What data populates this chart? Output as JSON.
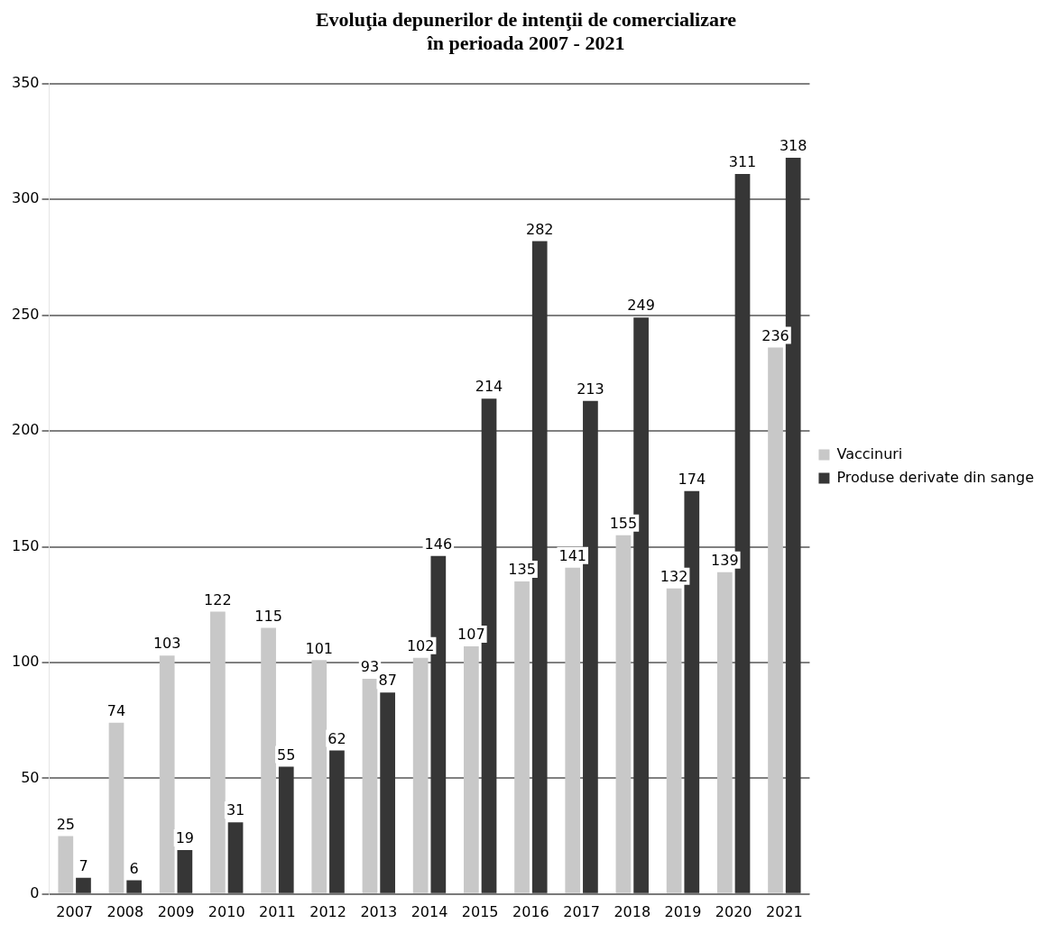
{
  "chart_data": {
    "type": "bar",
    "title": "Evoluţia depunerilor de intenţii de comercializare\nîn perioada 2007 - 2021",
    "categories": [
      "2007",
      "2008",
      "2009",
      "2010",
      "2011",
      "2012",
      "2013",
      "2014",
      "2015",
      "2016",
      "2017",
      "2018",
      "2019",
      "2020",
      "2021"
    ],
    "series": [
      {
        "name": "Vaccinuri",
        "color": "#c8c8c8",
        "values": [
          25,
          74,
          103,
          122,
          115,
          101,
          93,
          102,
          107,
          135,
          141,
          155,
          132,
          139,
          236
        ]
      },
      {
        "name": "Produse derivate din sange",
        "color": "#363636",
        "values": [
          7,
          6,
          19,
          31,
          55,
          62,
          87,
          146,
          214,
          282,
          213,
          249,
          174,
          311,
          318
        ]
      }
    ],
    "ylim": [
      0,
      350
    ],
    "yticks": [
      0,
      50,
      100,
      150,
      200,
      250,
      300,
      350
    ],
    "grid": "y",
    "legend": "right",
    "data_labels": true
  }
}
